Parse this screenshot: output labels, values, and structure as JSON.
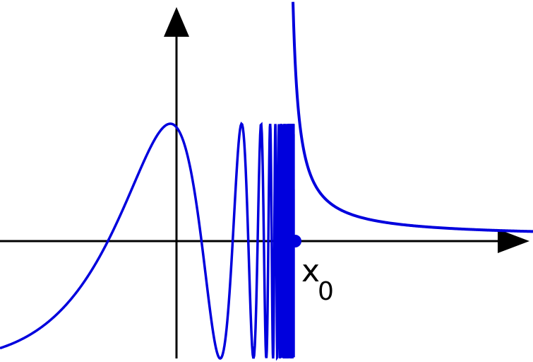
{
  "diagram": {
    "point_label": "x",
    "point_label_subscript": "0",
    "curve_color": "#0000dd",
    "axis_color": "#000000"
  }
}
